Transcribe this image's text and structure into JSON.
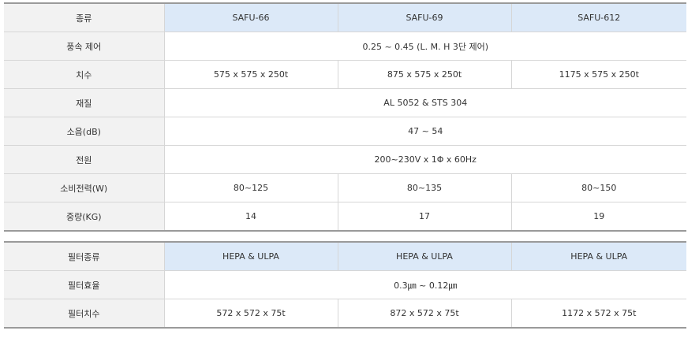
{
  "tables": [
    {
      "header": [
        "종류",
        "SAFU-66",
        "SAFU-69",
        "SAFU-612"
      ],
      "rows": [
        [
          "풍속 제어",
          "0.25 ~ 0.45 (L. M. H 3단 제어)"
        ],
        [
          "치수",
          "575 x 575 x 250t",
          "875 x 575 x 250t",
          "1175 x 575 x 250t"
        ],
        [
          "재질",
          "AL 5052 & STS 304"
        ],
        [
          "소음(dB)",
          "47 ~ 54"
        ],
        [
          "전원",
          "200~230V x 1Φ x 60Hz"
        ],
        [
          "소비전력(W)",
          "80~125",
          "80~135",
          "80~150"
        ],
        [
          "중량(KG)",
          "14",
          "17",
          "19"
        ]
      ]
    },
    {
      "header": [
        "필터종류",
        "HEPA & ULPA",
        "HEPA & ULPA",
        "HEPA & ULPA"
      ],
      "rows": [
        [
          "필터효율",
          "0.3㎛ ~ 0.12㎛"
        ],
        [
          "필터치수",
          "572 x 572 x 75t",
          "872 x 572 x 75t",
          "1172 x 572 x 75t"
        ]
      ]
    }
  ]
}
